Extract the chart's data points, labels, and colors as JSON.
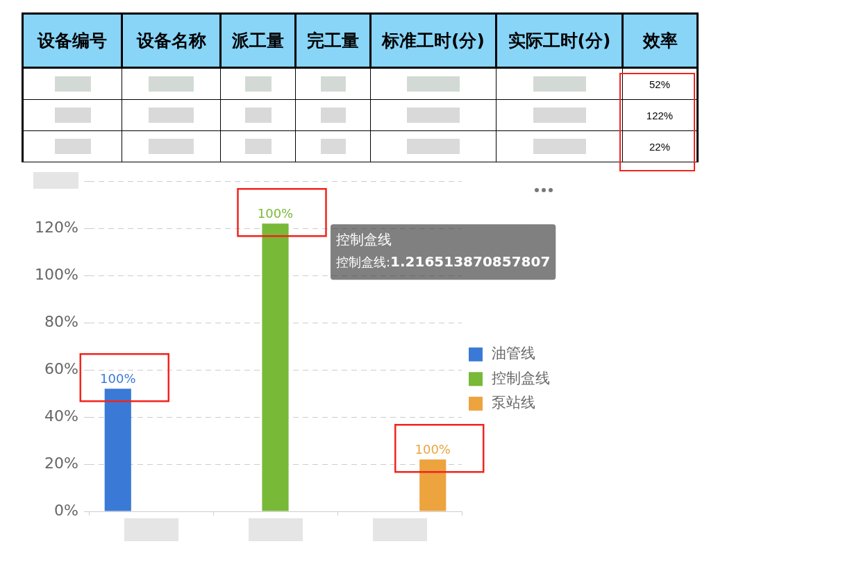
{
  "chart_data": [
    {
      "type": "other",
      "categories": [
        "设备编号",
        "设备名称",
        "派工量",
        "完工量",
        "标准工时(分)",
        "实际工时(分)",
        "效率"
      ],
      "cell_labels": [
        [
          null,
          null,
          null,
          null,
          null,
          null,
          "52%"
        ],
        [
          null,
          null,
          null,
          null,
          null,
          null,
          "122%"
        ],
        [
          null,
          null,
          null,
          null,
          null,
          null,
          "22%"
        ]
      ]
    },
    {
      "type": "bar",
      "categories": [
        null,
        null,
        null
      ],
      "series": [
        {
          "name": "油管线",
          "color": "#3a7ad6",
          "values": [
            52,
            null,
            null
          ]
        },
        {
          "name": "控制盒线",
          "color": "#78b938",
          "values": [
            null,
            122,
            null
          ]
        },
        {
          "name": "泵站线",
          "color": "#eda33e",
          "values": [
            null,
            null,
            22
          ]
        }
      ],
      "ylim": [
        0,
        140
      ],
      "yticks": [
        {
          "value": 0,
          "label": "0%"
        },
        {
          "value": 20,
          "label": "20%"
        },
        {
          "value": 40,
          "label": "40%"
        },
        {
          "value": 60,
          "label": "60%"
        },
        {
          "value": 80,
          "label": "80%"
        },
        {
          "value": 100,
          "label": "100%"
        },
        {
          "value": 120,
          "label": "120%"
        },
        {
          "value": 140,
          "label": null
        }
      ],
      "grid": "y",
      "legend": "right",
      "annotations": [
        {
          "text": "100%",
          "y": 52
        },
        {
          "text": "100%",
          "y": 122
        },
        {
          "text": "100%",
          "y": 22
        },
        "控制盒线",
        "控制盒线:1.216513870857807"
      ]
    }
  ]
}
